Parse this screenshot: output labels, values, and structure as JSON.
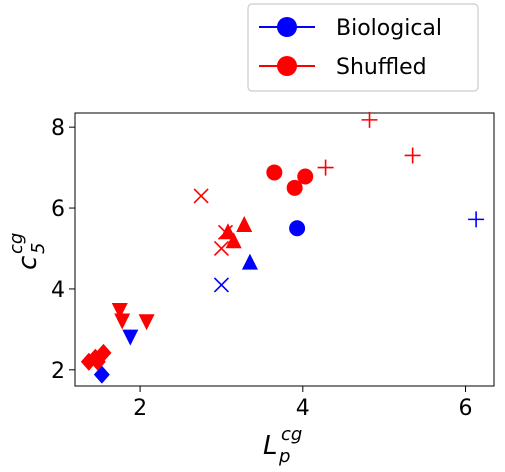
{
  "chart_data": {
    "type": "scatter",
    "xlabel": {
      "base": "L",
      "sub": "p",
      "sup": "cg"
    },
    "ylabel": {
      "base": "c",
      "sub": "5",
      "sup": "cg"
    },
    "xlim": [
      1.2,
      6.35
    ],
    "ylim": [
      1.6,
      8.35
    ],
    "xticks": [
      2,
      4,
      6
    ],
    "yticks": [
      2,
      4,
      6,
      8
    ],
    "grid": false,
    "legend_position": "top-right, outside plot",
    "legend": [
      {
        "label": "Biological",
        "color": "#0000ff"
      },
      {
        "label": "Shuffled",
        "color": "#ff0000"
      }
    ],
    "series": [
      {
        "name": "Biological",
        "color": "#0000ff",
        "points": [
          {
            "x": 1.53,
            "y": 1.88,
            "marker": "diamond"
          },
          {
            "x": 1.88,
            "y": 2.82,
            "marker": "triangle-down"
          },
          {
            "x": 3.35,
            "y": 4.65,
            "marker": "triangle-up"
          },
          {
            "x": 3.0,
            "y": 4.1,
            "marker": "x"
          },
          {
            "x": 3.93,
            "y": 5.5,
            "marker": "circle"
          },
          {
            "x": 6.13,
            "y": 5.72,
            "marker": "plus"
          }
        ]
      },
      {
        "name": "Shuffled",
        "color": "#ff0000",
        "points": [
          {
            "x": 1.37,
            "y": 2.2,
            "marker": "diamond"
          },
          {
            "x": 1.45,
            "y": 2.3,
            "marker": "diamond"
          },
          {
            "x": 1.55,
            "y": 2.42,
            "marker": "diamond"
          },
          {
            "x": 1.48,
            "y": 2.2,
            "marker": "diamond"
          },
          {
            "x": 1.75,
            "y": 3.48,
            "marker": "triangle-down"
          },
          {
            "x": 1.78,
            "y": 3.22,
            "marker": "triangle-down"
          },
          {
            "x": 2.08,
            "y": 3.2,
            "marker": "triangle-down"
          },
          {
            "x": 3.08,
            "y": 5.4,
            "marker": "triangle-up"
          },
          {
            "x": 3.28,
            "y": 5.58,
            "marker": "triangle-up"
          },
          {
            "x": 3.15,
            "y": 5.18,
            "marker": "triangle-up"
          },
          {
            "x": 2.75,
            "y": 6.3,
            "marker": "x"
          },
          {
            "x": 3.0,
            "y": 5.0,
            "marker": "x"
          },
          {
            "x": 3.05,
            "y": 5.4,
            "marker": "x"
          },
          {
            "x": 3.65,
            "y": 6.88,
            "marker": "circle"
          },
          {
            "x": 3.9,
            "y": 6.5,
            "marker": "circle"
          },
          {
            "x": 4.03,
            "y": 6.78,
            "marker": "circle"
          },
          {
            "x": 4.28,
            "y": 7.0,
            "marker": "plus"
          },
          {
            "x": 4.82,
            "y": 8.18,
            "marker": "plus"
          },
          {
            "x": 5.35,
            "y": 7.3,
            "marker": "plus"
          }
        ]
      }
    ]
  }
}
